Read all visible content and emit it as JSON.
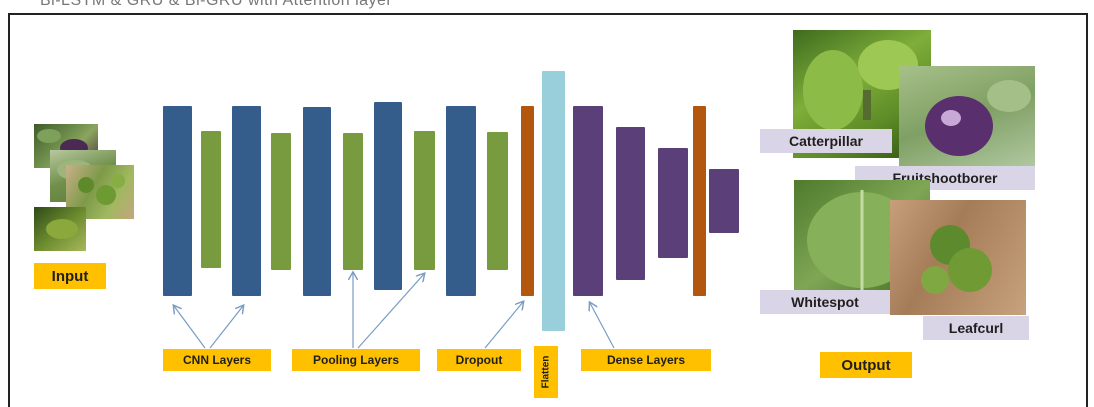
{
  "caption_fragment": "Bi-LSTM & GRU & Bi-GRU with Attention layer",
  "labels": {
    "input": "Input",
    "output": "Output",
    "cnn": "CNN Layers",
    "pooling": "Pooling Layers",
    "dropout": "Dropout",
    "flatten": "Flatten",
    "dense": "Dense Layers"
  },
  "classes": {
    "catterpillar": "Catterpillar",
    "fruitshootborer": "Fruitshootborer",
    "whitespot": "Whitespot",
    "leafcurl": "Leafcurl"
  },
  "colors": {
    "cnn": "#355d8c",
    "pooling": "#779b3e",
    "dropout": "#b3570e",
    "flatten": "#98cfdb",
    "dense": "#5b3f78",
    "label_bg": "#ffc000",
    "class_bg": "#d9d4e6"
  }
}
